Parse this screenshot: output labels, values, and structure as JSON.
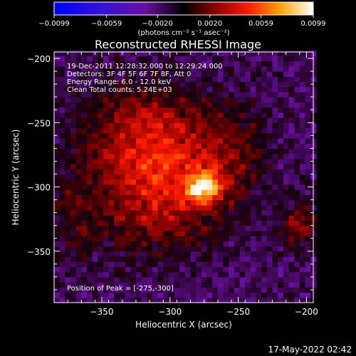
{
  "chart_data": {
    "type": "heatmap",
    "title": "Reconstructed RHESSI Image",
    "xlabel": "Heliocentric X (arcsec)",
    "ylabel": "Heliocentric Y (arcsec)",
    "xlim": [
      -385,
      -195
    ],
    "ylim": [
      -390,
      -195
    ],
    "x_ticks": [
      -350,
      -300,
      -250,
      -200
    ],
    "y_ticks": [
      -200,
      -250,
      -300,
      -350
    ],
    "x_tick_labels": [
      "−350",
      "−300",
      "−250",
      "−200"
    ],
    "y_tick_labels": [
      "−200",
      "−250",
      "−300",
      "−350"
    ],
    "colorbar": {
      "range": [
        -0.0099,
        0.0099
      ],
      "ticks": [
        -0.0099,
        -0.0059,
        -0.002,
        0.002,
        0.0059,
        0.0099
      ],
      "tick_labels": [
        "−0.0099",
        "−0.0059",
        "−0.0020",
        "0.0020",
        "0.0059",
        "0.0099"
      ],
      "units_label": "(photons cm⁻² s⁻¹ asec⁻²)"
    },
    "annotations": [
      "19-Dec-2011 12:28:32.000 to 12:29:24.000",
      "Detectors: 3F 4F 5F 6F 7F 8F, Att 0",
      "Energy Range: 6.0 - 12.0 keV",
      "Clean    Total counts: 5.24E+03"
    ],
    "peak_label": "Position of Peak = [-275,-300]",
    "peak": {
      "x": -275,
      "y": -300,
      "value": 0.0099
    },
    "sources": [
      {
        "x": -275,
        "y": -300,
        "sx": 9,
        "sy": 8,
        "amp": 0.0075
      },
      {
        "x": -295,
        "y": -290,
        "sx": 28,
        "sy": 22,
        "amp": 0.004
      },
      {
        "x": -330,
        "y": -280,
        "sx": 30,
        "sy": 40,
        "amp": 0.0032
      },
      {
        "x": -310,
        "y": -250,
        "sx": 26,
        "sy": 20,
        "amp": 0.0026
      },
      {
        "x": -255,
        "y": -270,
        "sx": 20,
        "sy": 28,
        "amp": 0.0024
      },
      {
        "x": -300,
        "y": -330,
        "sx": 30,
        "sy": 18,
        "amp": 0.0022
      },
      {
        "x": -205,
        "y": -330,
        "sx": 10,
        "sy": 12,
        "amp": 0.0038
      },
      {
        "x": -370,
        "y": -325,
        "sx": 12,
        "sy": 22,
        "amp": 0.0018
      }
    ],
    "background": -0.0016
  },
  "footer": {
    "timestamp": "17-May-2022 02:42"
  },
  "colors": {
    "background": "#000000",
    "text": "#ffffff"
  }
}
